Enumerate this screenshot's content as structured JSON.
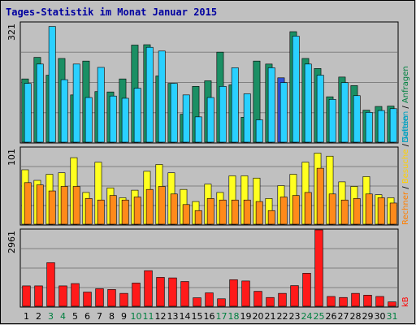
{
  "colors": {
    "background": "#c0c0c0",
    "border": "#000000",
    "panel_bg": "#c0c0c0",
    "grid": "#808080",
    "title": "#0000a0",
    "weekend_label": "#008040",
    "weekday_label": "#000000",
    "anfragen": "#1b8f64",
    "dateien": "#2ad0ff",
    "dateien_highlight": "#2e4fd6",
    "seiten": "#ffff20",
    "rechner": "#ff8a1a",
    "kb": "#ff1a1a",
    "besuche_label": "#ffd000",
    "rechner_label": "#ff7f00",
    "kb_label": "#ff0000",
    "dateien_label": "#00a0c0",
    "anfragen_label": "#008040"
  },
  "title": "Tages-Statistik im Monat Januar 2015",
  "right_labels": {
    "top": [
      {
        "text": "Dateien",
        "color_key": "dateien_label"
      },
      {
        "text": " / ",
        "color_key": "weekday_label"
      },
      {
        "text": "Anfragen",
        "color_key": "anfragen_label"
      }
    ],
    "middle": [
      {
        "text": "Rechner",
        "color_key": "rechner_label"
      },
      {
        "text": " / ",
        "color_key": "weekday_label"
      },
      {
        "text": "Besuche",
        "color_key": "besuche_label"
      },
      {
        "text": " / ",
        "color_key": "weekday_label"
      },
      {
        "text": "Seiten",
        "color_key": "dateien_label"
      }
    ],
    "bottom": [
      {
        "text": "kB",
        "color_key": "kb_label"
      }
    ]
  },
  "chart_data": [
    {
      "type": "bar",
      "panel": "hits",
      "ymax_label": "321",
      "ylim": [
        0,
        321
      ],
      "categories": [
        "1",
        "2",
        "3",
        "4",
        "5",
        "6",
        "7",
        "8",
        "9",
        "10",
        "11",
        "12",
        "13",
        "14",
        "15",
        "16",
        "17",
        "18",
        "19",
        "20",
        "21",
        "22",
        "23",
        "24",
        "25",
        "26",
        "27",
        "28",
        "29",
        "30",
        "31"
      ],
      "weekend_days": [
        "3",
        "4",
        "10",
        "11",
        "17",
        "18",
        "24",
        "25",
        "31"
      ],
      "series": [
        {
          "name": "Anfragen",
          "color_key": "anfragen",
          "values": [
            170,
            228,
            180,
            225,
            127,
            218,
            136,
            135,
            170,
            261,
            262,
            178,
            158,
            75,
            150,
            165,
            242,
            154,
            67,
            218,
            210,
            173,
            297,
            225,
            198,
            122,
            175,
            152,
            86,
            96,
            97
          ]
        },
        {
          "name": "Dateien",
          "color_key": "dateien",
          "values": [
            158,
            210,
            311,
            168,
            210,
            120,
            201,
            124,
            118,
            145,
            255,
            245,
            158,
            127,
            68,
            120,
            150,
            200,
            130,
            60,
            200,
            160,
            285,
            210,
            180,
            115,
            160,
            125,
            80,
            85,
            90
          ]
        }
      ],
      "highlight": {
        "series": "Anfragen",
        "category": "22"
      }
    },
    {
      "type": "bar",
      "panel": "visits",
      "ymax_label": "101",
      "ylim": [
        0,
        101
      ],
      "categories": [
        "1",
        "2",
        "3",
        "4",
        "5",
        "6",
        "7",
        "8",
        "9",
        "10",
        "11",
        "12",
        "13",
        "14",
        "15",
        "16",
        "17",
        "18",
        "19",
        "20",
        "21",
        "22",
        "23",
        "24",
        "25",
        "26",
        "27",
        "28",
        "29",
        "30",
        "31"
      ],
      "series": [
        {
          "name": "Seiten",
          "color_key": "seiten",
          "values": [
            72,
            58,
            66,
            68,
            88,
            42,
            82,
            48,
            35,
            45,
            70,
            79,
            68,
            46,
            30,
            53,
            42,
            64,
            64,
            61,
            34,
            51,
            66,
            82,
            94,
            90,
            56,
            50,
            63,
            39,
            35
          ]
        },
        {
          "name": "Rechner",
          "color_key": "rechner",
          "values": [
            55,
            52,
            44,
            50,
            50,
            34,
            32,
            38,
            32,
            36,
            46,
            50,
            40,
            26,
            18,
            34,
            32,
            32,
            32,
            30,
            18,
            36,
            38,
            42,
            74,
            40,
            32,
            34,
            40,
            35,
            28
          ]
        }
      ]
    },
    {
      "type": "bar",
      "panel": "kb",
      "ymax_label": "2961",
      "ylim": [
        0,
        2961
      ],
      "categories": [
        "1",
        "2",
        "3",
        "4",
        "5",
        "6",
        "7",
        "8",
        "9",
        "10",
        "11",
        "12",
        "13",
        "14",
        "15",
        "16",
        "17",
        "18",
        "19",
        "20",
        "21",
        "22",
        "23",
        "24",
        "25",
        "26",
        "27",
        "28",
        "29",
        "30",
        "31"
      ],
      "series": [
        {
          "name": "kB",
          "color_key": "kb",
          "values": [
            790,
            790,
            1690,
            790,
            880,
            550,
            680,
            650,
            500,
            900,
            1380,
            1120,
            1100,
            960,
            330,
            520,
            290,
            1030,
            980,
            580,
            340,
            500,
            800,
            1280,
            2961,
            380,
            340,
            500,
            430,
            380,
            170
          ]
        }
      ]
    }
  ]
}
